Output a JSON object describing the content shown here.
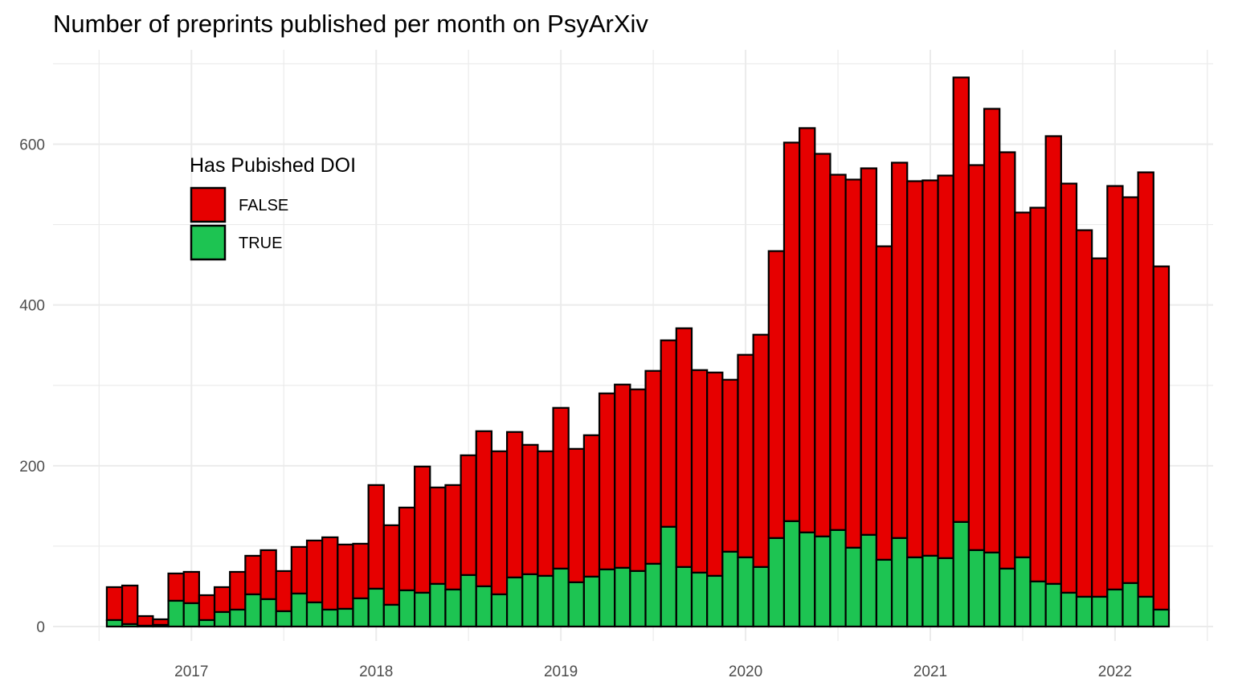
{
  "chart_data": {
    "type": "bar",
    "stacked": true,
    "title": "Number of preprints published per month on PsyArXiv",
    "xlabel": "",
    "ylabel": "",
    "x_ticks": [
      "2017",
      "2018",
      "2019",
      "2020",
      "2021",
      "2022"
    ],
    "y_ticks": [
      "0",
      "200",
      "400",
      "600"
    ],
    "ylim": [
      0,
      700
    ],
    "grid": true,
    "legend": {
      "title": "Has Pubished DOI",
      "placement": "top-left inside plot"
    },
    "categories": [
      "2016-08",
      "2016-09",
      "2016-10",
      "2016-11",
      "2016-12",
      "2017-01",
      "2017-02",
      "2017-03",
      "2017-04",
      "2017-05",
      "2017-06",
      "2017-07",
      "2017-08",
      "2017-09",
      "2017-10",
      "2017-11",
      "2017-12",
      "2018-01",
      "2018-02",
      "2018-03",
      "2018-04",
      "2018-05",
      "2018-06",
      "2018-07",
      "2018-08",
      "2018-09",
      "2018-10",
      "2018-11",
      "2018-12",
      "2019-01",
      "2019-02",
      "2019-03",
      "2019-04",
      "2019-05",
      "2019-06",
      "2019-07",
      "2019-08",
      "2019-09",
      "2019-10",
      "2019-11",
      "2019-12",
      "2020-01",
      "2020-02",
      "2020-03",
      "2020-04",
      "2020-05",
      "2020-06",
      "2020-07",
      "2020-08",
      "2020-09",
      "2020-10",
      "2020-11",
      "2020-12",
      "2021-01",
      "2021-02",
      "2021-03",
      "2021-04",
      "2021-05",
      "2021-06",
      "2021-07",
      "2021-08",
      "2021-09",
      "2021-10",
      "2021-11",
      "2021-12",
      "2022-01",
      "2022-02",
      "2022-03",
      "2022-04"
    ],
    "series": [
      {
        "name": "TRUE",
        "color": "#1DC452",
        "values": [
          8,
          3,
          1,
          2,
          32,
          29,
          8,
          18,
          21,
          40,
          34,
          19,
          41,
          30,
          21,
          22,
          35,
          47,
          27,
          45,
          42,
          53,
          46,
          64,
          50,
          40,
          61,
          65,
          63,
          72,
          55,
          62,
          71,
          73,
          69,
          78,
          124,
          74,
          67,
          63,
          93,
          86,
          74,
          110,
          131,
          117,
          112,
          120,
          98,
          114,
          83,
          110,
          86,
          88,
          85,
          130,
          95,
          92,
          72,
          86,
          56,
          53,
          42,
          37,
          37,
          46,
          54,
          37,
          21
        ]
      },
      {
        "name": "FALSE",
        "color": "#E60000",
        "values": [
          41,
          48,
          12,
          7,
          34,
          39,
          31,
          31,
          47,
          48,
          61,
          50,
          58,
          77,
          90,
          80,
          68,
          129,
          99,
          103,
          157,
          120,
          130,
          149,
          193,
          178,
          181,
          161,
          155,
          200,
          166,
          176,
          219,
          228,
          226,
          240,
          232,
          297,
          252,
          253,
          214,
          252,
          289,
          357,
          471,
          503,
          476,
          442,
          458,
          456,
          390,
          467,
          468,
          467,
          476,
          553,
          479,
          552,
          518,
          429,
          465,
          557,
          509,
          456,
          421,
          502,
          480,
          528,
          427
        ]
      }
    ]
  }
}
